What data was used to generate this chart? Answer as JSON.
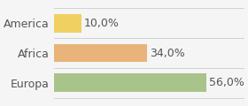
{
  "categories": [
    "America",
    "Africa",
    "Europa"
  ],
  "values": [
    10.0,
    34.0,
    56.0
  ],
  "bar_colors": [
    "#f0d060",
    "#e8b47a",
    "#a8c48a"
  ],
  "labels": [
    "10,0%",
    "34,0%",
    "56,0%"
  ],
  "background_color": "#f5f5f5",
  "xlim": [
    0,
    70
  ],
  "label_fontsize": 9,
  "tick_fontsize": 9
}
